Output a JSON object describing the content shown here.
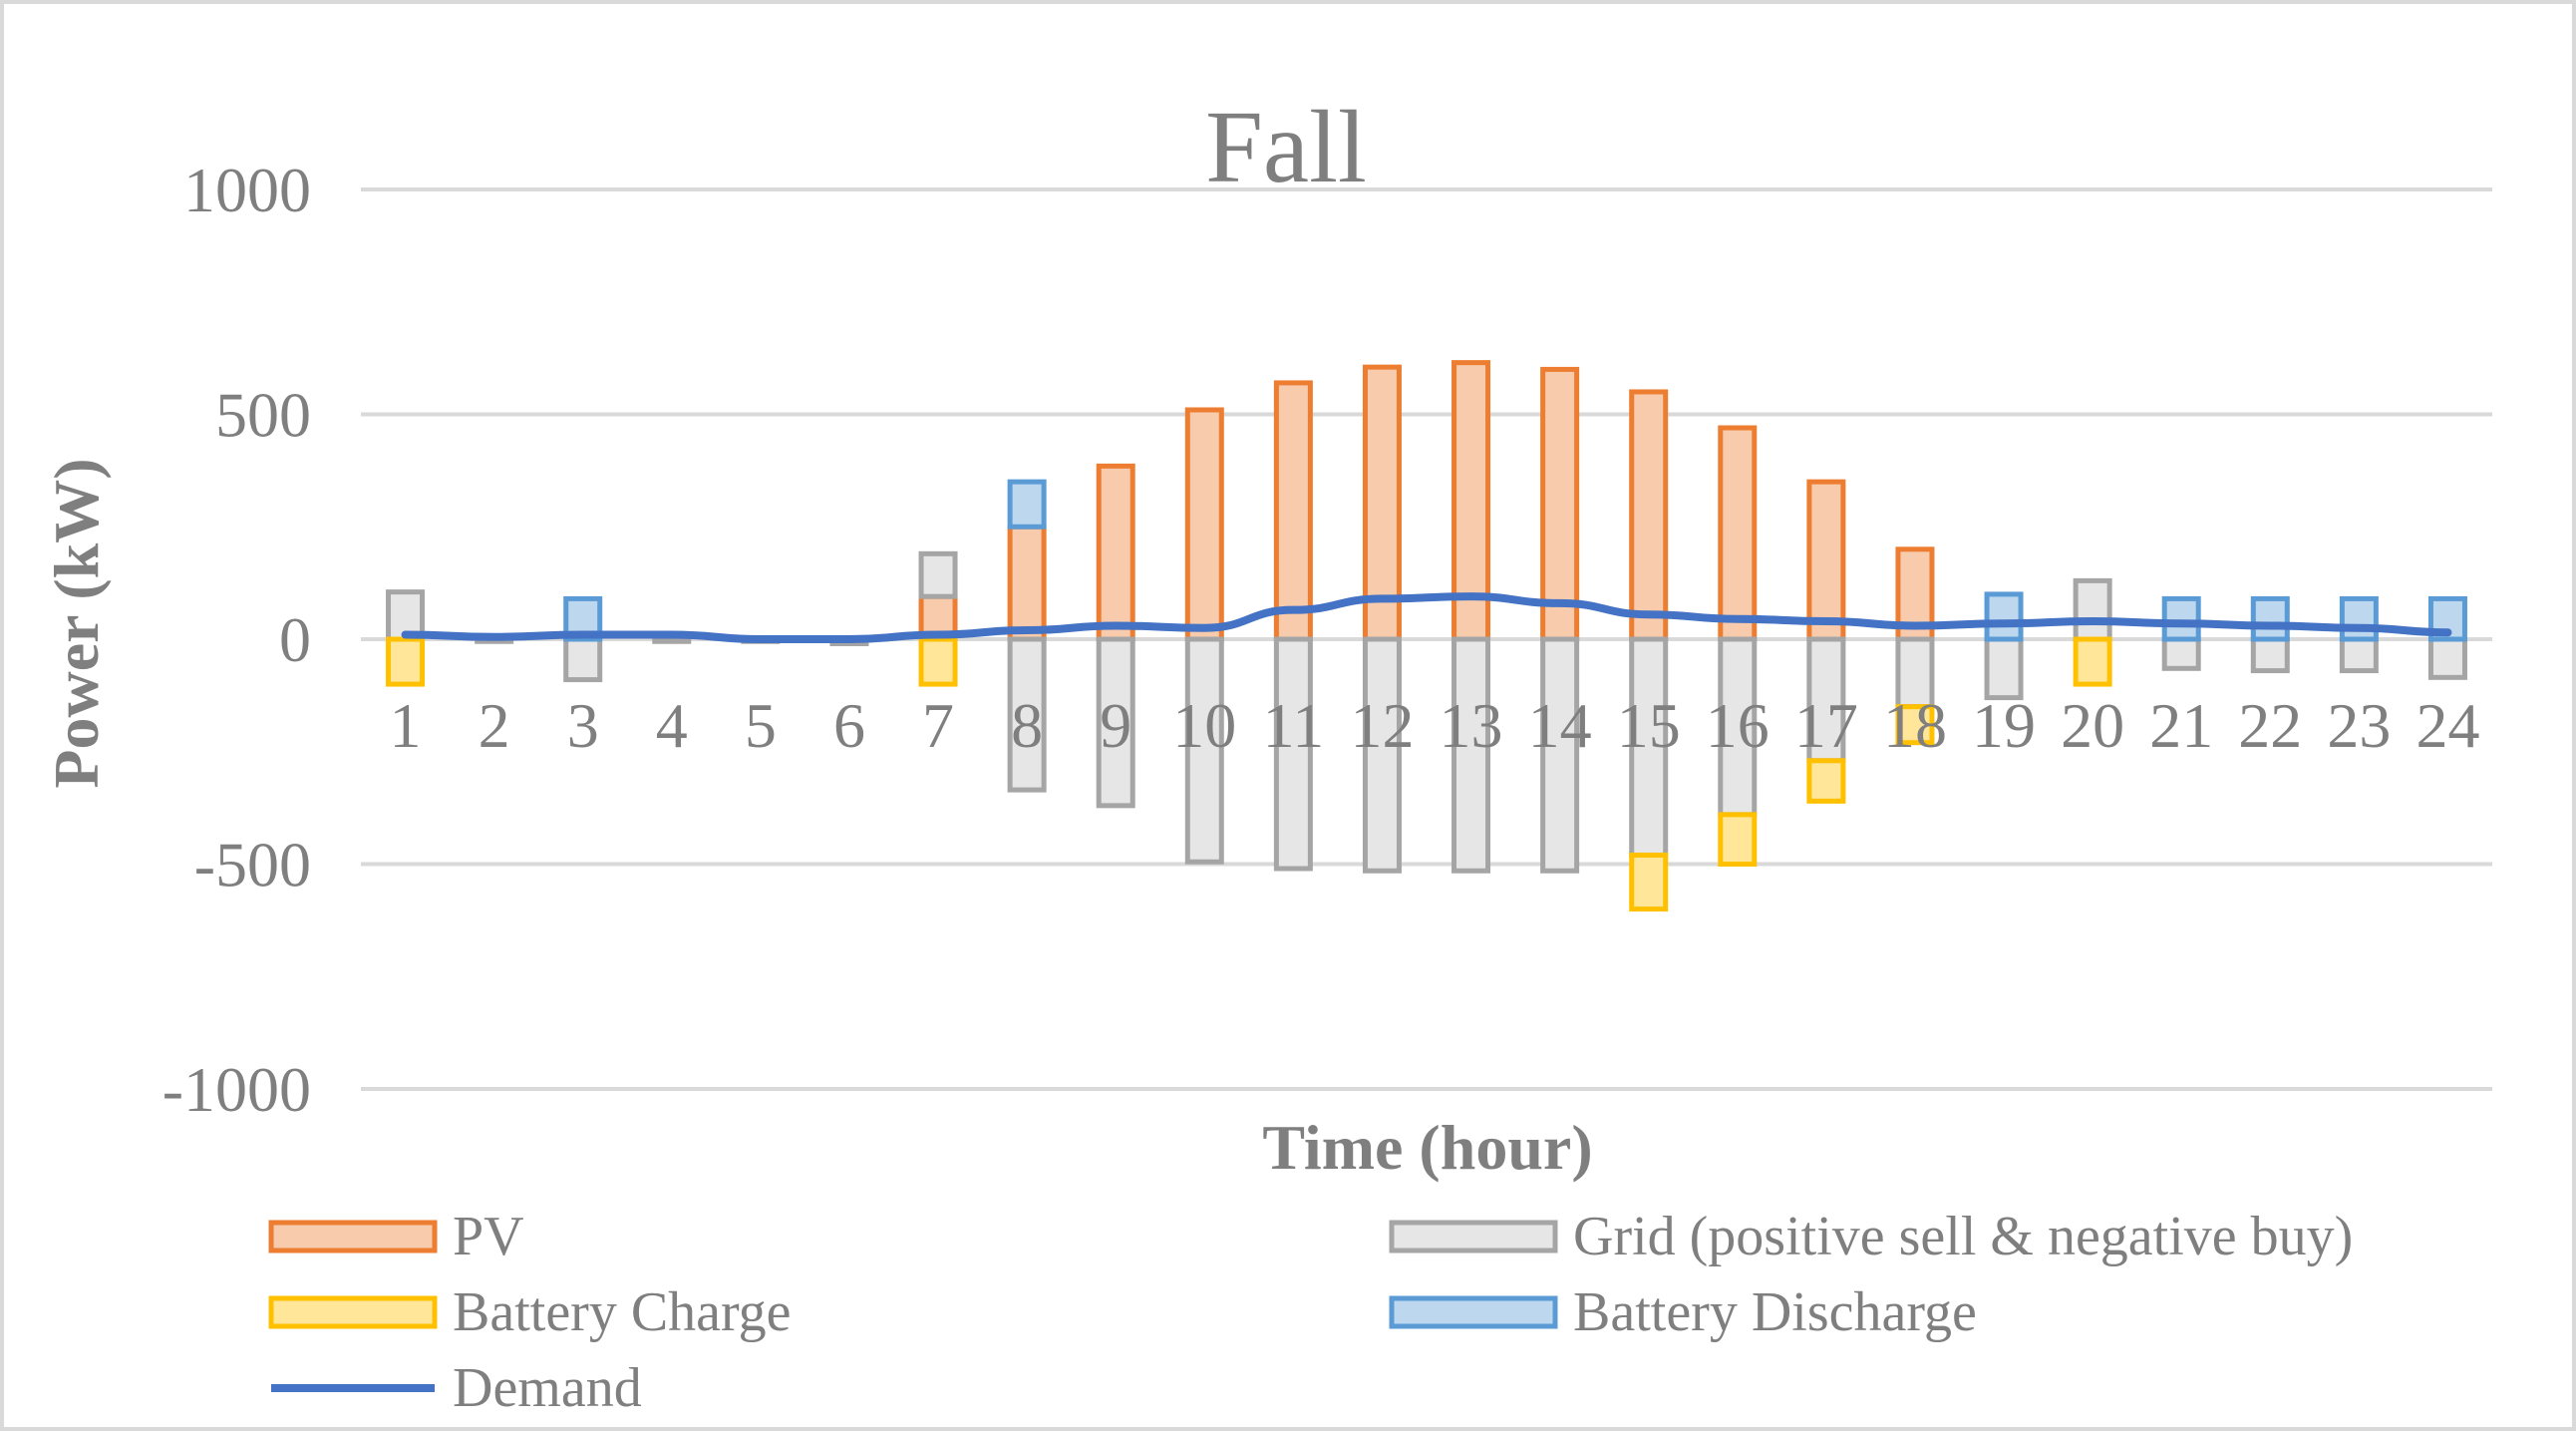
{
  "chart_data": {
    "type": "bar",
    "title": "Fall",
    "xlabel": "Time (hour)",
    "ylabel": "Power (kW)",
    "ylim": [
      -1000,
      1000
    ],
    "yticks": [
      "1000",
      "500",
      "0",
      "-500",
      "-1000"
    ],
    "ytick_values": [
      1000,
      500,
      0,
      -500,
      -1000
    ],
    "categories": [
      "1",
      "2",
      "3",
      "4",
      "5",
      "6",
      "7",
      "8",
      "9",
      "10",
      "11",
      "12",
      "13",
      "14",
      "15",
      "16",
      "17",
      "18",
      "19",
      "20",
      "21",
      "22",
      "23",
      "24"
    ],
    "grid": true,
    "legend_position": "bottom",
    "series": [
      {
        "name": "PV",
        "kind": "bar",
        "fill": "#f8cbad",
        "stroke": "#ed7d31",
        "values": [
          0,
          0,
          0,
          0,
          0,
          0,
          95,
          250,
          385,
          510,
          570,
          605,
          615,
          600,
          550,
          470,
          350,
          200,
          0,
          0,
          0,
          0,
          0,
          0
        ]
      },
      {
        "name": "Grid (positive sell & negative buy)",
        "kind": "bar",
        "fill": "#e7e6e6",
        "stroke": "#a5a5a5",
        "values": [
          105,
          -5,
          -90,
          -5,
          -5,
          -10,
          95,
          -335,
          -370,
          -495,
          -510,
          -515,
          -515,
          -515,
          -480,
          -390,
          -270,
          -150,
          -130,
          130,
          -65,
          -70,
          -70,
          -85
        ]
      },
      {
        "name": "Battery Charge",
        "kind": "bar",
        "fill": "#ffe699",
        "stroke": "#ffc000",
        "values": [
          -100,
          0,
          0,
          0,
          0,
          0,
          -100,
          0,
          0,
          0,
          0,
          0,
          0,
          0,
          -120,
          -110,
          -90,
          -80,
          0,
          -100,
          0,
          0,
          0,
          0
        ]
      },
      {
        "name": "Battery Discharge",
        "kind": "bar",
        "fill": "#bdd7ee",
        "stroke": "#5b9bd5",
        "values": [
          0,
          0,
          90,
          0,
          0,
          0,
          0,
          100,
          0,
          0,
          0,
          0,
          0,
          0,
          0,
          0,
          0,
          0,
          100,
          0,
          90,
          90,
          90,
          90
        ]
      },
      {
        "name": "Demand",
        "kind": "line",
        "stroke": "#4472c4",
        "values": [
          10,
          5,
          10,
          10,
          0,
          0,
          10,
          20,
          30,
          25,
          65,
          90,
          95,
          80,
          55,
          45,
          40,
          30,
          35,
          40,
          35,
          30,
          25,
          15
        ]
      }
    ]
  }
}
